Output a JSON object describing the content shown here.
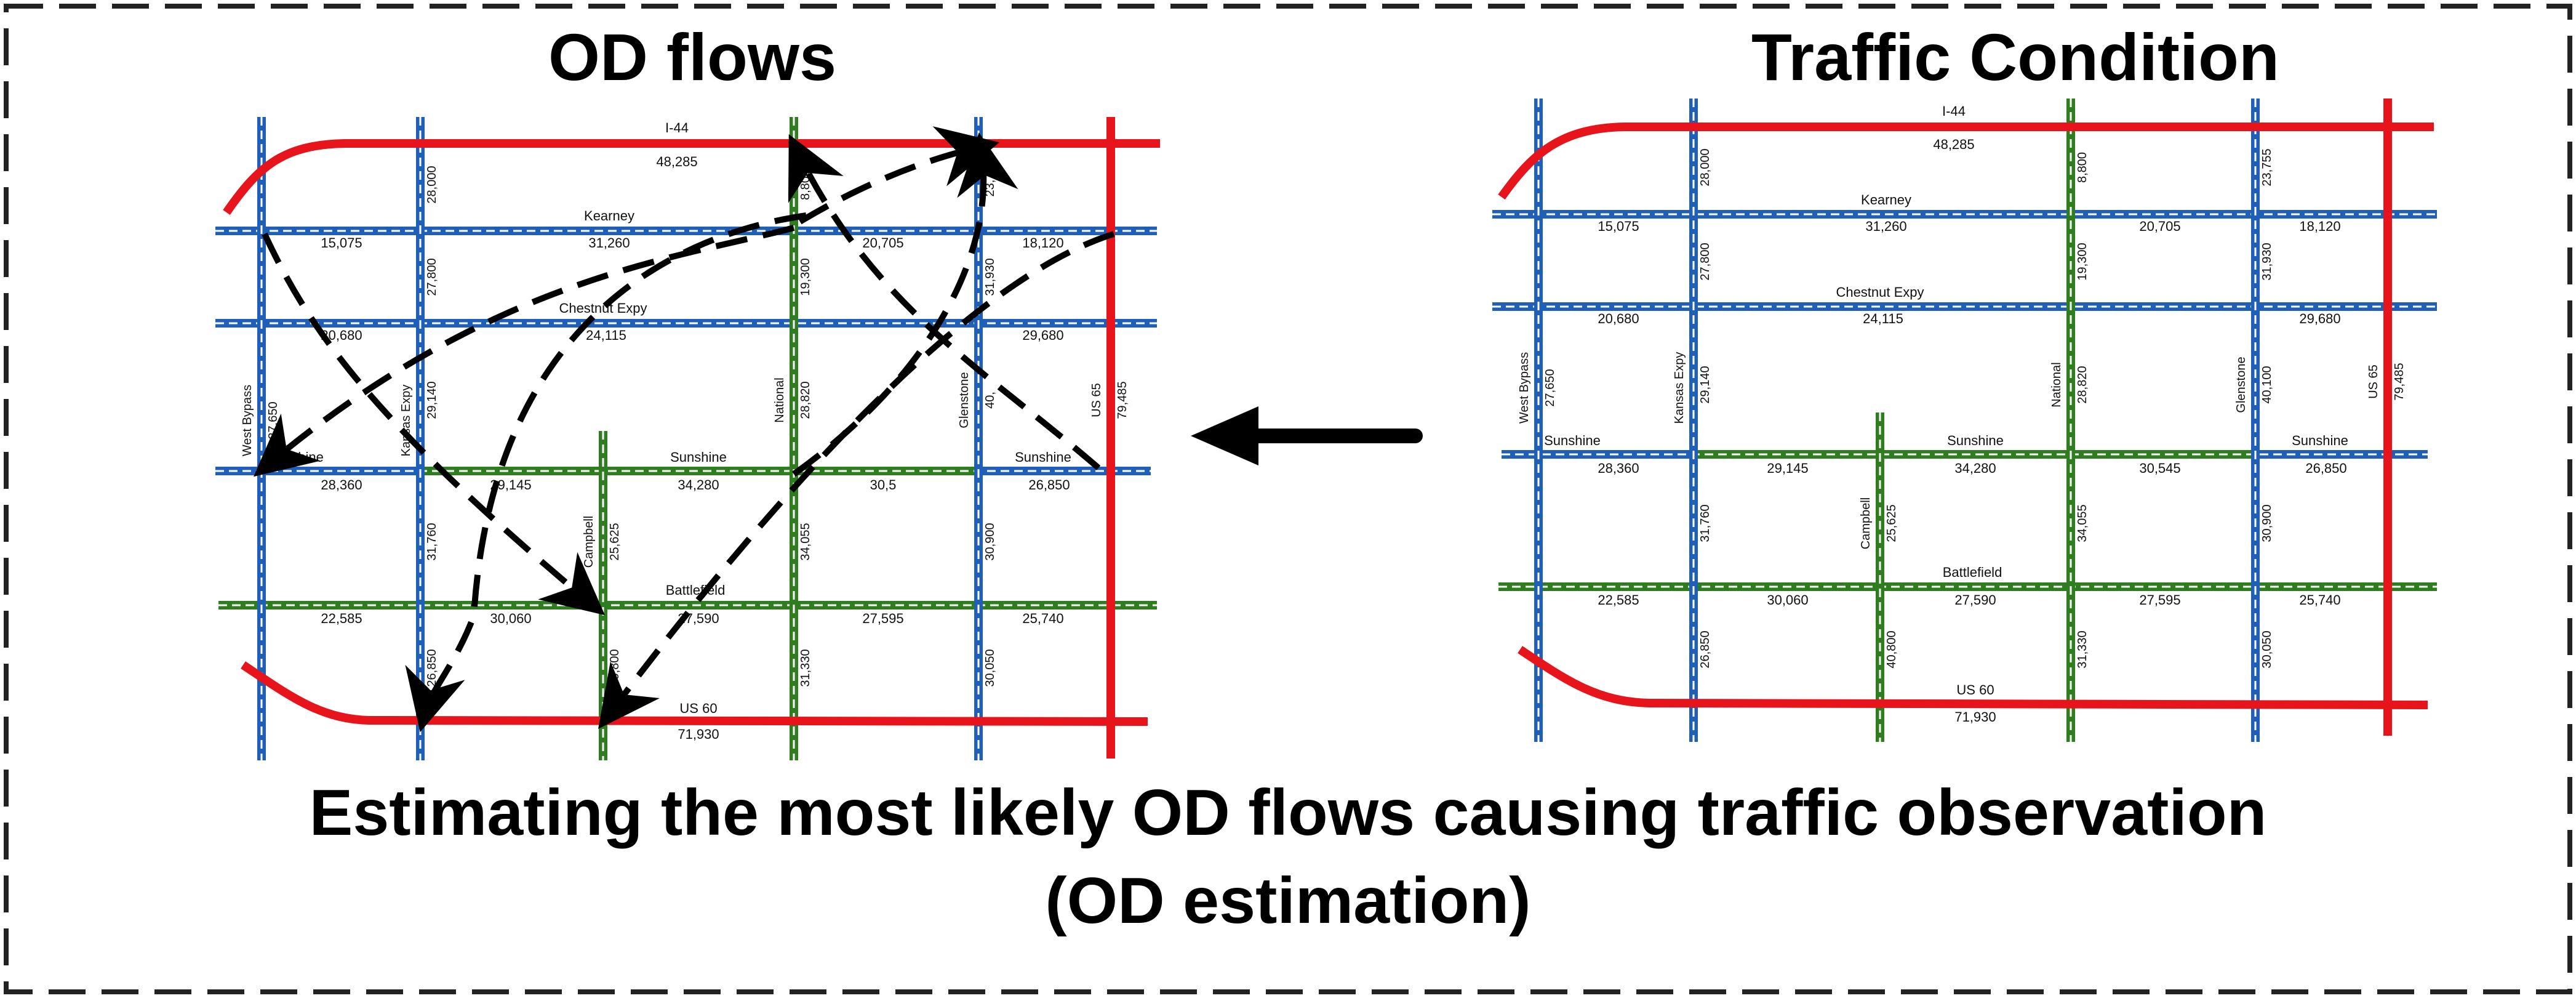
{
  "titles": {
    "od_flows": "OD flows",
    "traffic_condition": "Traffic Condition"
  },
  "caption": {
    "line1": "Estimating the most likely OD flows causing traffic observation",
    "line2": "(OD estimation)"
  },
  "colors": {
    "frame": "#222222",
    "highway": "#e8141b",
    "blue_road": "#1f5fb8",
    "green_road": "#2e7d1e",
    "dash_center": "#ffffff",
    "flow_arrow": "#000000"
  },
  "roads": {
    "i44": "I-44",
    "kearney": "Kearney",
    "chestnut": "Chestnut Expy",
    "sunshine": "Sunshine",
    "battlefield": "Battlefield",
    "us60": "US 60",
    "west_bypass": "West Bypass",
    "kansas_expy": "Kansas Expy",
    "campbell": "Campbell",
    "national": "National",
    "glenstone": "Glenstone",
    "us65": "US 65"
  },
  "counts": {
    "i44": "48,285",
    "kearney_1": "15,075",
    "kearney_2": "31,260",
    "kearney_3": "20,705",
    "kearney_4": "18,120",
    "chestnut_1": "20,680",
    "chestnut_2": "24,115",
    "chestnut_3": "29,680",
    "sunshine_1": "28,360",
    "sunshine_2": "29,145",
    "sunshine_3": "34,280",
    "sunshine_4": "30,545",
    "sunshine_5": "26,850",
    "battlefield_1": "22,585",
    "battlefield_2": "30,060",
    "battlefield_3": "27,590",
    "battlefield_4": "27,595",
    "battlefield_5": "25,740",
    "us60": "71,930",
    "west_bypass": "27,650",
    "kansas_1": "28,000",
    "kansas_2": "27,800",
    "kansas_3": "29,140",
    "kansas_4": "31,760",
    "kansas_5": "26,850",
    "campbell_1": "25,625",
    "campbell_2": "40,800",
    "national_1": "8,800",
    "national_2": "19,300",
    "national_3": "28,820",
    "national_4": "34,055",
    "national_5": "31,330",
    "glenstone_1": "23,755",
    "glenstone_2": "31,930",
    "glenstone_3": "40,100",
    "glenstone_4": "30,900",
    "glenstone_5": "30,050",
    "us65": "79,485"
  },
  "left_map_visible": {
    "kansas_5": "26,850",
    "national_1": "8,800",
    "glenstone_1": "23,7",
    "glenstone_3": "40,",
    "sunshine_4": "30,5"
  },
  "arrow_label": "flow-direction-arrow"
}
